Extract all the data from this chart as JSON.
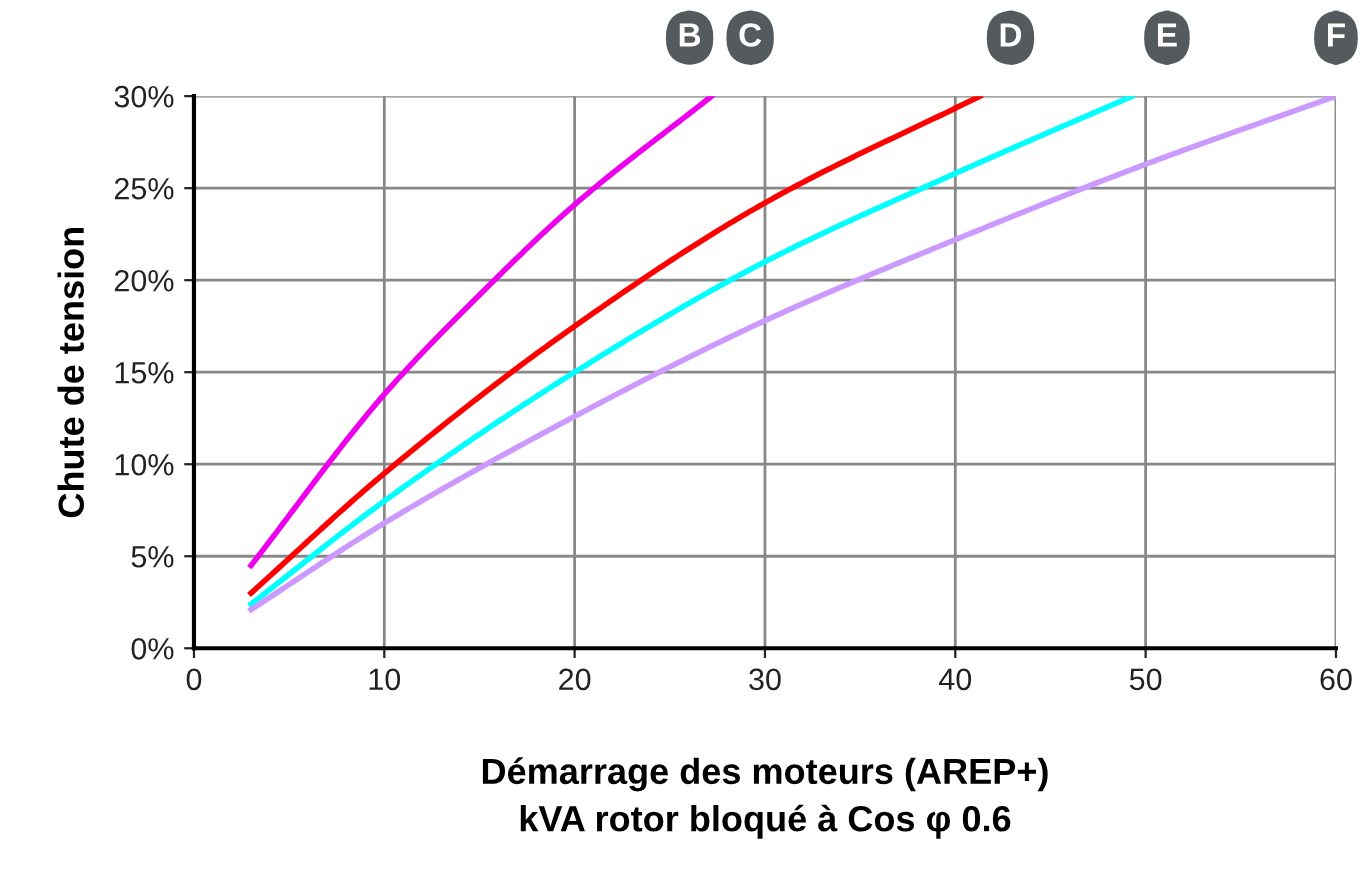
{
  "chart_data": {
    "type": "line",
    "xlabel": "Démarrage des moteurs (AREP+)\nkVA rotor bloqué à Cos φ 0.6",
    "ylabel": "Chute de tension",
    "series": [
      {
        "color": "#ee00ee",
        "x": [
          3,
          10,
          15,
          20,
          27.2
        ],
        "values": [
          4.5,
          13.8,
          19.2,
          24.1,
          30
        ]
      },
      {
        "color": "#ff0000",
        "x": [
          3,
          10,
          20,
          30,
          41.3
        ],
        "values": [
          3.0,
          9.5,
          17.5,
          24.2,
          30
        ]
      },
      {
        "color": "#00ffff",
        "x": [
          3,
          10,
          20,
          30,
          40,
          49.3
        ],
        "values": [
          2.4,
          8.0,
          15.0,
          21.0,
          25.8,
          30
        ]
      },
      {
        "color": "#cc99ff",
        "x": [
          3,
          10,
          20,
          30,
          40,
          50,
          60
        ],
        "values": [
          2.1,
          6.8,
          12.6,
          17.8,
          22.2,
          26.3,
          30
        ]
      }
    ],
    "annotations": [
      "B",
      "C",
      "D",
      "E",
      "F"
    ],
    "xlim": [
      0,
      60
    ],
    "xticks": [
      0,
      10,
      20,
      30,
      40,
      50,
      60
    ],
    "ylim": [
      0,
      30
    ],
    "yticks": [
      {
        "value": 0,
        "label": "0%"
      },
      {
        "value": 5,
        "label": "5%"
      },
      {
        "value": 10,
        "label": "10%"
      },
      {
        "value": 15,
        "label": "15%"
      },
      {
        "value": 20,
        "label": "20%"
      },
      {
        "value": 25,
        "label": "25%"
      },
      {
        "value": 30,
        "label": "30%"
      }
    ],
    "grid": true,
    "marker": "none",
    "line_style": "solid",
    "legend": false
  }
}
